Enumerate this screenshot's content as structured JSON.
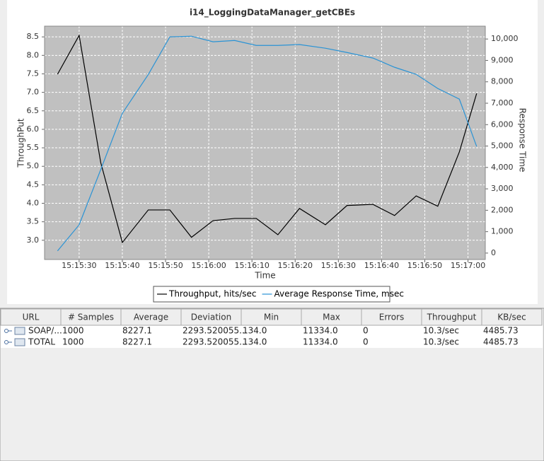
{
  "chart_data": {
    "type": "line",
    "title": "i14_LoggingDataManager_getCBEs",
    "x_label": "Time",
    "y_label": "ThroughPut",
    "y2_label": "Response Time",
    "x": [
      "15:15:25",
      "15:15:30",
      "15:15:35",
      "15:15:40",
      "15:15:46",
      "15:15:51",
      "15:15:56",
      "15:16:01",
      "15:16:06",
      "15:16:11",
      "15:16:16",
      "15:16:21",
      "15:16:27",
      "15:16:32",
      "15:16:38",
      "15:16:43",
      "15:16:48",
      "15:16:53",
      "15:16:58",
      "15:17:02"
    ],
    "series": [
      {
        "name": "Throughput, hits/sec",
        "color": "#000000",
        "axis": "y",
        "values": [
          7.49,
          8.54,
          5.1,
          2.94,
          3.82,
          3.82,
          3.08,
          3.53,
          3.59,
          3.59,
          3.15,
          3.86,
          3.42,
          3.94,
          3.97,
          3.67,
          4.2,
          3.92,
          5.39,
          6.97
        ]
      },
      {
        "name": "Average Response Time, msec",
        "color": "#2a93d5",
        "axis": "y2",
        "values": [
          100,
          1320,
          3900,
          6530,
          8340,
          10100,
          10130,
          9870,
          9930,
          9700,
          9700,
          9740,
          9570,
          9370,
          9110,
          8680,
          8350,
          7690,
          7190,
          4980
        ]
      }
    ],
    "xlim": [
      "15:15:22",
      "15:17:04"
    ],
    "xticks": [
      "15:15:30",
      "15:15:40",
      "15:15:50",
      "15:16:00",
      "15:16:10",
      "15:16:20",
      "15:16:30",
      "15:16:40",
      "15:16:50",
      "15:17:00"
    ],
    "ylim": [
      2.48,
      8.79
    ],
    "yticks": [
      {
        "value": 3,
        "label": "3.0"
      },
      {
        "value": 3.5,
        "label": "3.5"
      },
      {
        "value": 4,
        "label": "4.0"
      },
      {
        "value": 4.5,
        "label": "4.5"
      },
      {
        "value": 5,
        "label": "5.0"
      },
      {
        "value": 5.5,
        "label": "5.5"
      },
      {
        "value": 6,
        "label": "6.0"
      },
      {
        "value": 6.5,
        "label": "6.5"
      },
      {
        "value": 7,
        "label": "7.0"
      },
      {
        "value": 7.5,
        "label": "7.5"
      },
      {
        "value": 8,
        "label": "8.0"
      },
      {
        "value": 8.5,
        "label": "8.5"
      }
    ],
    "y2lim": [
      -300,
      10600
    ],
    "y2ticks": [
      0,
      {
        "value": 1000,
        "label": "1,000"
      },
      {
        "value": 2000,
        "label": "2,000"
      },
      {
        "value": 3000,
        "label": "3,000"
      },
      {
        "value": 4000,
        "label": "4,000"
      },
      {
        "value": 5000,
        "label": "5,000"
      },
      {
        "value": 6000,
        "label": "6,000"
      },
      {
        "value": 7000,
        "label": "7,000"
      },
      {
        "value": 8000,
        "label": "8,000"
      },
      {
        "value": 9000,
        "label": "9,000"
      },
      {
        "value": 10000,
        "label": "10,000"
      }
    ],
    "grid": true
  },
  "table": {
    "columns": [
      "URL",
      "# Samples",
      "Average",
      "Deviation",
      "Min",
      "Max",
      "Errors",
      "Throughput",
      "KB/sec"
    ],
    "rows": [
      [
        "SOAP/...",
        "1000",
        "8227.1",
        "2293.520055...",
        "134.0",
        "11334.0",
        "0",
        "10.3/sec",
        "4485.73"
      ],
      [
        "TOTAL",
        "1000",
        "8227.1",
        "2293.520055...",
        "134.0",
        "11334.0",
        "0",
        "10.3/sec",
        "4485.73"
      ]
    ]
  }
}
